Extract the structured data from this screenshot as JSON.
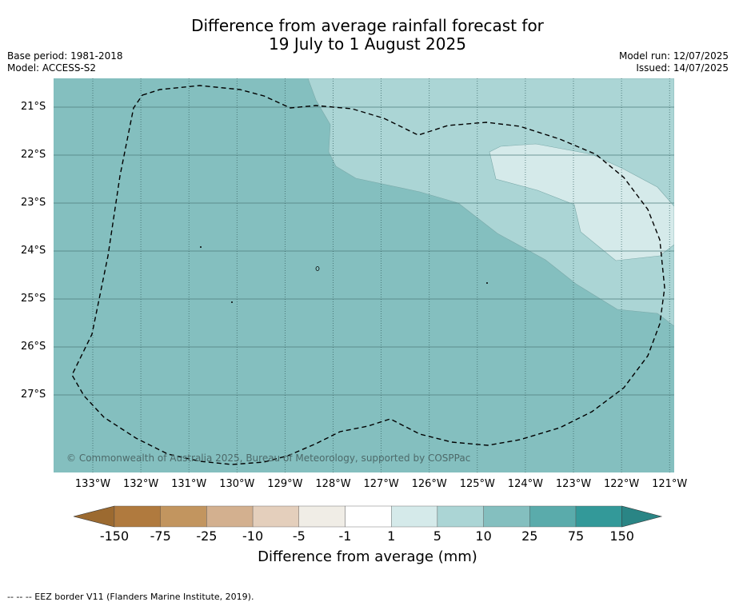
{
  "title": {
    "line1": "Difference from average rainfall forecast for",
    "line2": "19 July to 1 August 2025"
  },
  "meta": {
    "base_period": "Base period: 1981-2018",
    "model": "Model: ACCESS-S2",
    "model_run": "Model run: 12/07/2025",
    "issued": "Issued: 14/07/2025"
  },
  "map": {
    "lat_labels": [
      "21°S",
      "22°S",
      "23°S",
      "24°S",
      "25°S",
      "26°S",
      "27°S"
    ],
    "lon_labels": [
      "133°W",
      "132°W",
      "131°W",
      "130°W",
      "129°W",
      "128°W",
      "127°W",
      "126°W",
      "125°W",
      "124°W",
      "123°W",
      "122°W",
      "121°W"
    ],
    "copyright": "© Commonwealth of Australia 2025, Bureau of Meteorology, supported by COSPPac",
    "colors": {
      "base": "#84bfbf",
      "light": "#abd5d5",
      "lightest": "#d5eaea"
    }
  },
  "colorbar": {
    "ticks": [
      "-150",
      "-75",
      "-25",
      "-10",
      "-5",
      "-1",
      "1",
      "5",
      "10",
      "25",
      "75",
      "150"
    ],
    "colors": [
      "#b07a3e",
      "#c2955f",
      "#d3b08f",
      "#e4cfbc",
      "#f0ede6",
      "#ffffff",
      "#d5eaea",
      "#abd5d5",
      "#84bfbf",
      "#5aabab",
      "#339999"
    ],
    "low_extend_color": "#9c6a30",
    "high_extend_color": "#2a8585",
    "label": "Difference from average (mm)"
  },
  "footer": "-- -- -- EEZ border V11 (Flanders Marine Institute, 2019)."
}
